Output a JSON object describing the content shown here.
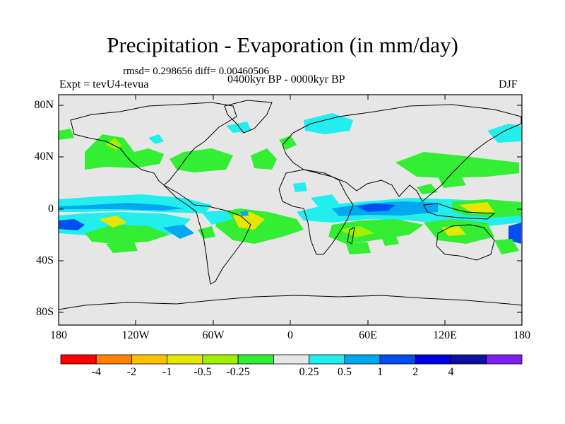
{
  "title": "Precipitation - Evaporation (in mm/day)",
  "stats": "rmsd= 0.298656 diff= 0.00460506",
  "period": "0400kyr BP - 0000kyr BP",
  "experiment": "Expt = tevU4-tevua",
  "season": "DJF",
  "lat_ticks": [
    "80N",
    "40N",
    "0",
    "40S",
    "80S"
  ],
  "lon_ticks": [
    "180",
    "120W",
    "60W",
    "0",
    "60E",
    "120E",
    "180"
  ],
  "colorbar": {
    "colors": [
      "#ff0000",
      "#ff8000",
      "#ffc000",
      "#e6e600",
      "#a0f000",
      "#33ee33",
      "#e6e6e6",
      "#22eeee",
      "#00a8f0",
      "#0050f0",
      "#0000e0",
      "#1010a0",
      "#8020f0"
    ],
    "labels": [
      "-4",
      "-2",
      "-1",
      "-0.5",
      "-0.25",
      "0.25",
      "0.5",
      "1",
      "2",
      "4"
    ]
  },
  "colors": {
    "ocean_land_background": "#e6e6e6"
  }
}
